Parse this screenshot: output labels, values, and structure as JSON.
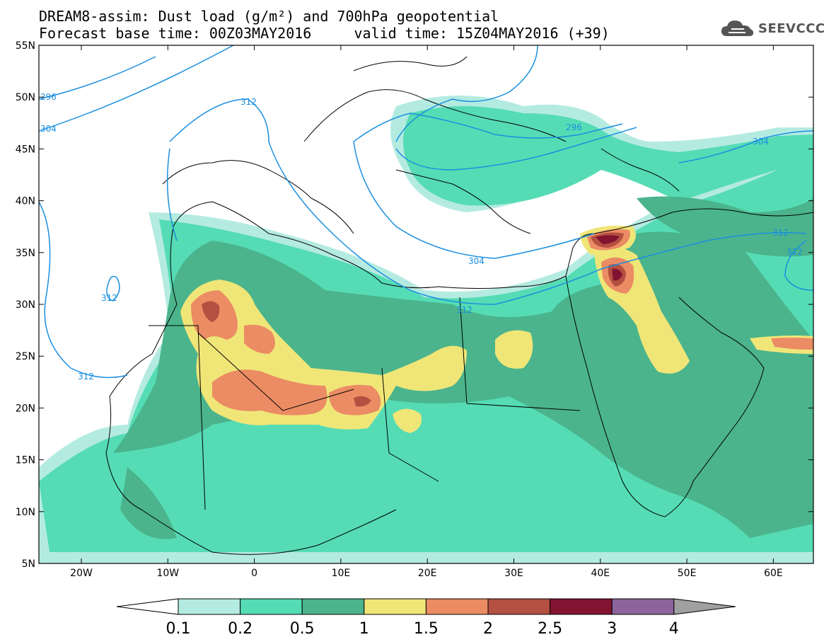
{
  "title_line1": "DREAM8-assim: Dust load (g/m²) and 700hPa geopotential",
  "title_line2": "Forecast base time: 00Z03MAY2016     valid time: 15Z04MAY2016 (+39)",
  "logo_text": "SEEVCCC",
  "axes": {
    "lat_labels": [
      "55N",
      "50N",
      "45N",
      "40N",
      "35N",
      "30N",
      "25N",
      "20N",
      "15N",
      "10N",
      "5N"
    ],
    "lon_labels": [
      "20W",
      "10W",
      "0",
      "10E",
      "20E",
      "30E",
      "40E",
      "50E",
      "60E"
    ]
  },
  "contour_labels": [
    "296",
    "312",
    "304",
    "296",
    "304",
    "312",
    "312",
    "304",
    "312",
    "312"
  ],
  "colorbar": {
    "colors": [
      "#b4ebe1",
      "#55dcb4",
      "#4bb48c",
      "#f0e678",
      "#eb8c64",
      "#b45041",
      "#821432",
      "#8c649b",
      "#a0a0a0"
    ],
    "tick_labels": [
      "0.1",
      "0.2",
      "0.5",
      "1",
      "1.5",
      "2",
      "2.5",
      "3",
      "4"
    ]
  }
}
